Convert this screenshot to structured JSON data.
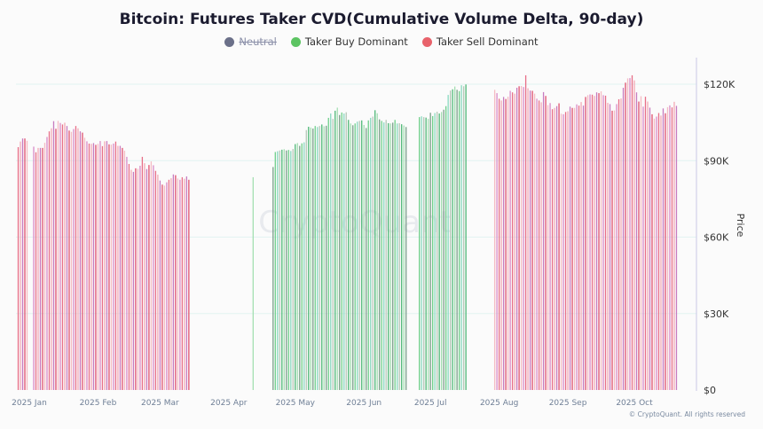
{
  "title": "Bitcoin: Futures Taker CVD(Cumulative Volume Delta, 90-day)",
  "legend": [
    {
      "label": "Neutral",
      "color": "#6b7089",
      "hidden": true
    },
    {
      "label": "Taker Buy Dominant",
      "color": "#5cc462",
      "hidden": false
    },
    {
      "label": "Taker Sell Dominant",
      "color": "#e8626b",
      "hidden": false
    }
  ],
  "watermark": "CryptoQuant",
  "footer": "© CryptoQuant. All rights reserved",
  "chart_data": {
    "type": "bar",
    "title": "Bitcoin: Futures Taker CVD(Cumulative Volume Delta, 90-day)",
    "ylabel": "Price",
    "y_axis_position": "right",
    "ylim": [
      0,
      132000
    ],
    "y_ticks": [
      {
        "value": 0,
        "label": "$0"
      },
      {
        "value": 30000,
        "label": "$30K"
      },
      {
        "value": 60000,
        "label": "$60K"
      },
      {
        "value": 90000,
        "label": "$90K"
      },
      {
        "value": 120000,
        "label": "$120K"
      }
    ],
    "x_ticks": [
      {
        "date": "2025-01-01",
        "label": "2025 Jan"
      },
      {
        "date": "2025-02-01",
        "label": "2025 Feb"
      },
      {
        "date": "2025-03-01",
        "label": "2025 Mar"
      },
      {
        "date": "2025-04-01",
        "label": "2025 Apr"
      },
      {
        "date": "2025-05-01",
        "label": "2025 May"
      },
      {
        "date": "2025-06-01",
        "label": "2025 Jun"
      },
      {
        "date": "2025-07-01",
        "label": "2025 Jul"
      },
      {
        "date": "2025-08-01",
        "label": "2025 Aug"
      },
      {
        "date": "2025-09-01",
        "label": "2025 Sep"
      },
      {
        "date": "2025-10-01",
        "label": "2025 Oct"
      }
    ],
    "grid": true,
    "legend_position": "top",
    "value_unit": "thousand USD",
    "segments": [
      {
        "series": "Taker Sell Dominant",
        "start": "2024-12-27",
        "values": [
          95.3,
          97.5,
          98.7,
          98.7,
          97.8,
          null,
          null,
          95.5,
          93.3,
          95,
          95,
          95,
          97,
          99.3,
          101.5,
          102.7,
          105.5,
          102.5,
          105.6,
          104.8,
          104.2,
          104.9,
          103.6,
          101.8,
          101.3,
          102.4,
          103.6,
          102.7,
          101.5,
          101,
          99,
          97.6,
          96.7,
          96.6,
          96.9,
          96.2,
          96.6,
          97.7,
          95.7,
          97.6,
          97.7,
          96.4,
          96.3,
          96.7,
          97.5,
          95.8,
          95.8,
          95,
          93.9,
          91.5,
          88.7,
          86.4,
          85.6,
          87,
          86.8,
          88,
          91.5,
          89,
          86.7,
          88.3,
          89.7,
          88.2,
          86,
          84.5,
          82.2,
          80.6,
          80.2,
          81.5,
          82.5,
          83.1,
          84.6,
          84.3,
          83,
          82.5,
          83.5,
          82.9,
          83.8,
          82.5
        ]
      },
      {
        "series": "Taker Buy Dominant",
        "start": "2025-04-12",
        "values": [
          83.5
        ]
      },
      {
        "series": "Taker Buy Dominant",
        "start": "2025-04-21",
        "values": [
          87.5,
          93.4,
          93.7,
          94,
          94.3,
          94.5,
          94,
          94.2,
          93.8,
          94.6,
          96.5,
          96.9,
          95.8,
          96.8,
          97.2,
          102,
          103.3,
          103,
          102.6,
          103.6,
          103.2,
          103.6,
          104.2,
          103.5,
          103.7,
          106.8,
          108.5,
          106.4,
          109.6,
          110.8,
          107.9,
          108.9,
          108.5,
          109,
          106,
          104.6,
          103.9,
          104.6,
          105.3,
          105.6,
          105.8,
          104,
          102.8,
          105.8,
          106.8,
          107.3,
          109.8,
          108.6,
          106.2,
          105.6,
          105,
          106,
          104.7,
          104.6,
          104.9,
          106,
          104.6,
          104.7,
          104.3,
          103.8,
          103.2
        ]
      },
      {
        "series": "Taker Buy Dominant",
        "start": "2025-06-26",
        "values": [
          107.1,
          107.4,
          107.1,
          106.9,
          106.4,
          108.8,
          107.5,
          108.7,
          109.2,
          108.5,
          109.1,
          110,
          111.4,
          115.8,
          117.5,
          118,
          119.1,
          117.8,
          117.3,
          119.6,
          119.2,
          119.9
        ]
      },
      {
        "series": "Taker Sell Dominant",
        "start": "2025-07-30",
        "values": [
          117.8,
          116.5,
          114.3,
          113.6,
          115,
          114.2,
          115.1,
          117.4,
          116.8,
          116.3,
          118.6,
          119.2,
          119.3,
          118.9,
          123.5,
          118.4,
          117.5,
          117.4,
          116.3,
          114.3,
          113.6,
          112.9,
          116.9,
          115.4,
          111.8,
          112.6,
          110.2,
          110.7,
          111.4,
          112.5,
          108.4,
          108.2,
          109.1,
          109.4,
          111.2,
          110.7,
          110.7,
          112.1,
          111.6,
          113,
          111.6,
          115,
          115.7,
          116,
          115.9,
          115.4,
          116.8,
          116.5,
          117.2,
          115.7,
          115.5,
          112.7,
          112.2,
          109.6,
          109.7,
          112.2,
          114.1,
          114.4,
          118.6,
          120.6,
          122.3,
          122.4,
          123.5,
          121.5,
          116.8,
          113.2,
          115.3,
          111.2,
          115.1,
          113.2,
          110.8,
          108.2,
          106.5,
          107.3,
          108.7,
          107.7,
          110.5,
          108.6,
          111,
          111.7,
          110.9,
          113.1,
          111.5
        ]
      }
    ]
  }
}
